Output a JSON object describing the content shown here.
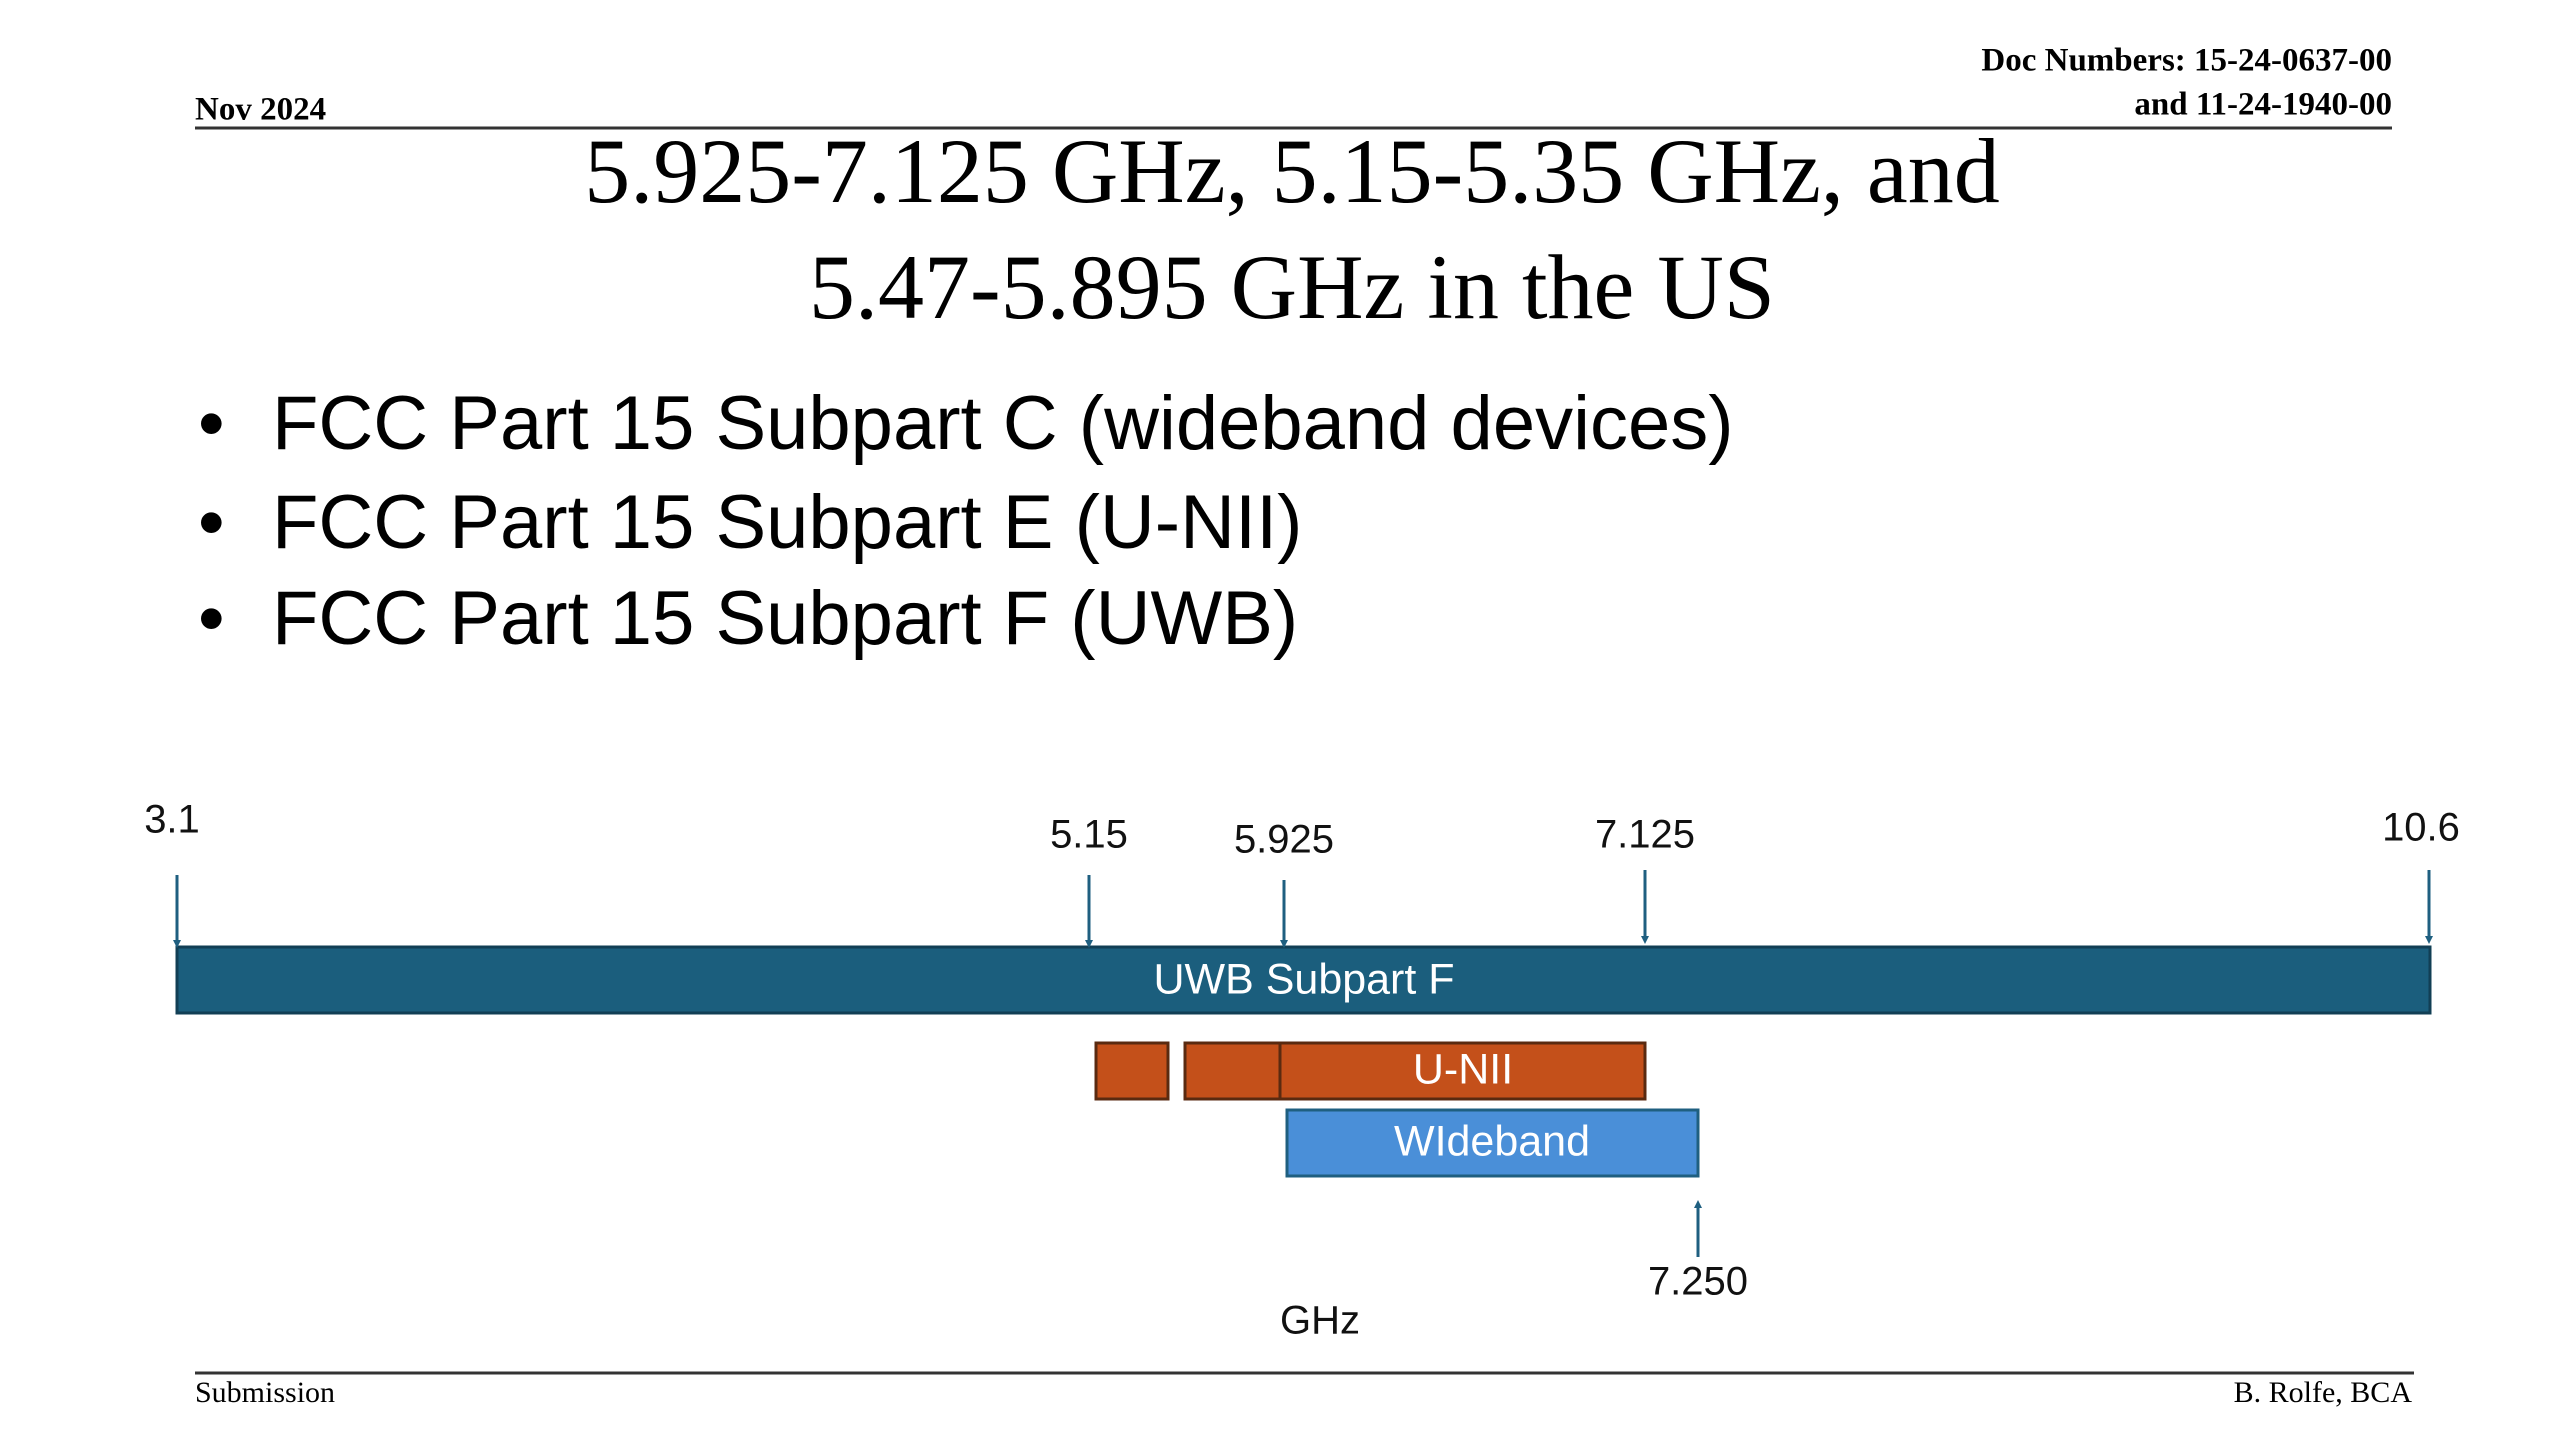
{
  "header": {
    "date": "Nov 2024",
    "doc_numbers": [
      "Doc Numbers: 15-24-0637-00",
      "and 11-24-1940-00"
    ]
  },
  "title": [
    "5.925-7.125 GHz, 5.15-5.35 GHz, and",
    "5.47-5.895 GHz in the US"
  ],
  "bullets": [
    "FCC Part 15 Subpart C (wideband devices)",
    "FCC Part 15 Subpart E (U-NII)",
    "FCC Part 15 Subpart F (UWB)"
  ],
  "diagram": {
    "markers": [
      "3.1",
      "5.15",
      "5.925",
      "7.125",
      "10.6",
      "7.250"
    ],
    "bars": [
      "UWB Subpart F",
      "U-NII",
      "WIdeband"
    ],
    "unit": "GHz"
  },
  "footer": {
    "left": "Submission",
    "right": "B. Rolfe, BCA"
  }
}
